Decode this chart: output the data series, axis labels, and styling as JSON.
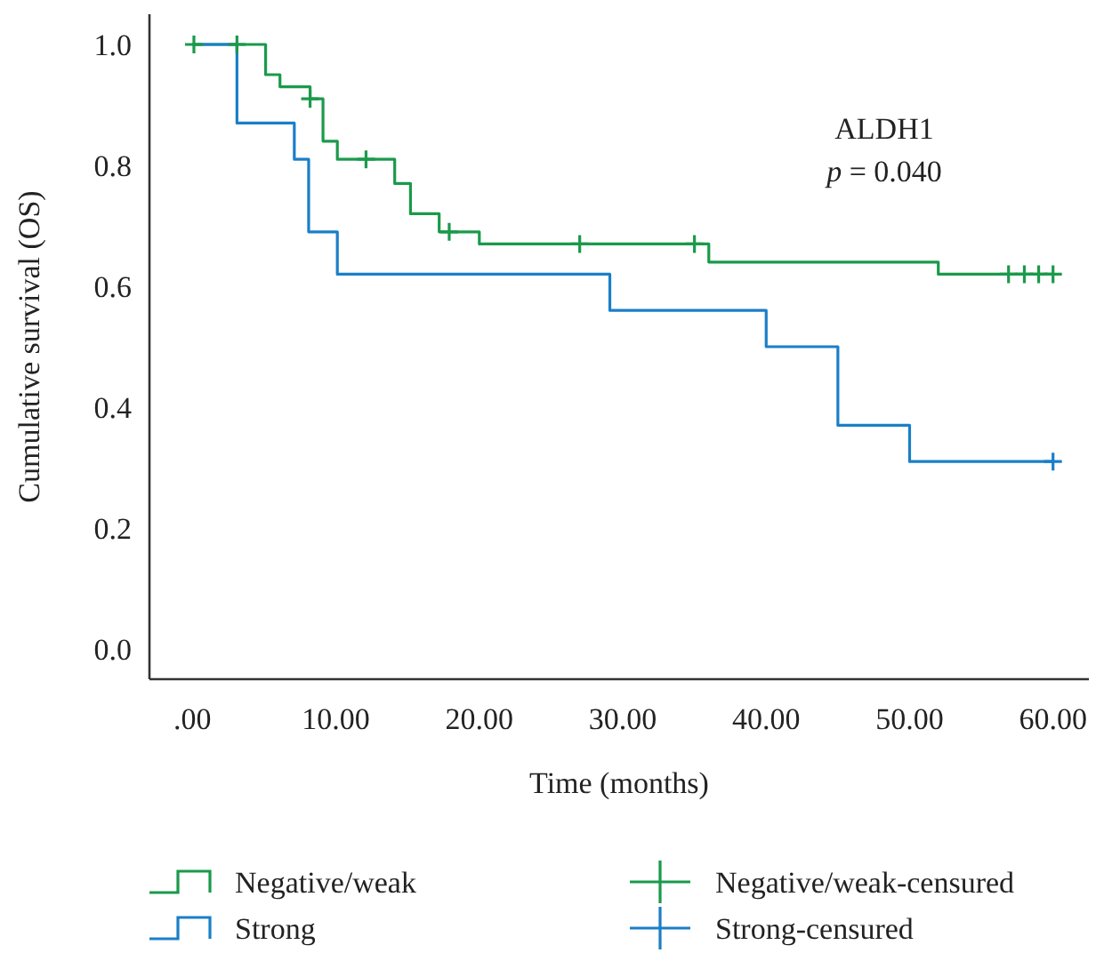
{
  "chart_data": {
    "type": "step",
    "xlabel": "Time (months)",
    "ylabel": "Cumulative survival (OS)",
    "annotations": [
      "ALDH1",
      "p = 0.040"
    ],
    "xlim": [
      -3,
      62.5
    ],
    "ylim": [
      -0.05,
      1.05
    ],
    "xticks": [
      {
        "value": 0,
        "label": ".00"
      },
      {
        "value": 10,
        "label": "10.00"
      },
      {
        "value": 20,
        "label": "20.00"
      },
      {
        "value": 30,
        "label": "30.00"
      },
      {
        "value": 40,
        "label": "40.00"
      },
      {
        "value": 50,
        "label": "50.00"
      },
      {
        "value": 60,
        "label": "60.00"
      }
    ],
    "yticks": [
      {
        "value": 0,
        "label": "0.0"
      },
      {
        "value": 0.2,
        "label": "0.2"
      },
      {
        "value": 0.4,
        "label": "0.4"
      },
      {
        "value": 0.6,
        "label": "0.6"
      },
      {
        "value": 0.8,
        "label": "0.8"
      },
      {
        "value": 1,
        "label": "1.0"
      }
    ],
    "grid": false,
    "legend": "bottom",
    "series": [
      {
        "name": "Negative/weak",
        "color": "#1a9a4a",
        "x": [
          0,
          5.1,
          6.1,
          8.2,
          9.1,
          10.1,
          14.1,
          15.2,
          17.2,
          20,
          36,
          52,
          60
        ],
        "values": [
          1,
          0.95,
          0.93,
          0.91,
          0.84,
          0.81,
          0.77,
          0.72,
          0.69,
          0.67,
          0.64,
          0.62,
          0.62
        ]
      },
      {
        "name": "Strong",
        "color": "#1a7fc8",
        "x": [
          0,
          3.1,
          7.1,
          8.1,
          10.1,
          29.1,
          40,
          45,
          50,
          60
        ],
        "values": [
          1,
          0.87,
          0.81,
          0.69,
          0.62,
          0.56,
          0.5,
          0.37,
          0.31,
          0.31
        ]
      },
      {
        "name": "Negative/weak-censured",
        "type": "scatter",
        "marker": "cross",
        "color": "#1a9a4a",
        "x": [
          0.1,
          3.1,
          8.2,
          12.1,
          17.9,
          27,
          35,
          56.9,
          58,
          59,
          60
        ],
        "values": [
          1,
          1,
          0.91,
          0.81,
          0.69,
          0.67,
          0.67,
          0.62,
          0.62,
          0.62,
          0.62
        ]
      },
      {
        "name": "Strong-censured",
        "type": "scatter",
        "marker": "cross",
        "color": "#1a7fc8",
        "x": [
          60
        ],
        "values": [
          0.31
        ]
      }
    ]
  }
}
